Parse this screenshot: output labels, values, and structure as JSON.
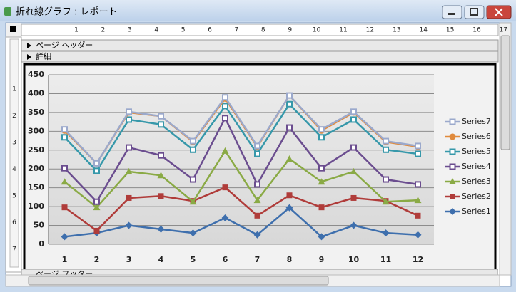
{
  "window": {
    "title": "折れ線グラフ : レポート",
    "sections": {
      "header": "ページ ヘッダー",
      "detail": "詳細",
      "footer": "ページ フッター"
    },
    "ruler_top": [
      "1",
      "2",
      "3",
      "4",
      "5",
      "6",
      "7",
      "8",
      "9",
      "10",
      "11",
      "12",
      "13",
      "14",
      "15",
      "16",
      "17"
    ],
    "ruler_left": [
      "1",
      "2",
      "3",
      "4",
      "5",
      "6",
      "7"
    ]
  },
  "chart_data": {
    "type": "line",
    "categories": [
      1,
      2,
      3,
      4,
      5,
      6,
      7,
      8,
      9,
      10,
      11,
      12
    ],
    "ylim": [
      0,
      450
    ],
    "yticks": [
      0,
      50,
      100,
      150,
      200,
      250,
      300,
      350,
      400,
      450
    ],
    "grid": true,
    "series": [
      {
        "name": "Series1",
        "color": "#3e6fad",
        "marker": "diamond",
        "values": [
          20,
          30,
          50,
          40,
          30,
          70,
          25,
          97,
          20,
          50,
          30,
          25
        ]
      },
      {
        "name": "Series2",
        "color": "#b03c3a",
        "marker": "square",
        "values": [
          98,
          36,
          123,
          128,
          115,
          151,
          76,
          130,
          98,
          123,
          115,
          76
        ]
      },
      {
        "name": "Series3",
        "color": "#8aaa45",
        "marker": "triangle",
        "values": [
          166,
          98,
          193,
          183,
          113,
          248,
          117,
          227,
          166,
          193,
          113,
          117
        ]
      },
      {
        "name": "Series4",
        "color": "#6b4d8f",
        "marker": "hollow-square",
        "values": [
          202,
          113,
          257,
          236,
          172,
          335,
          159,
          310,
          202,
          257,
          172,
          159
        ]
      },
      {
        "name": "Series5",
        "color": "#3698aa",
        "marker": "hollow-square",
        "values": [
          284,
          195,
          331,
          318,
          251,
          367,
          240,
          372,
          284,
          331,
          251,
          240
        ]
      },
      {
        "name": "Series6",
        "color": "#e08a3c",
        "marker": "circle",
        "values": [
          302,
          215,
          350,
          340,
          272,
          387,
          259,
          395,
          302,
          350,
          272,
          259
        ]
      },
      {
        "name": "Series7",
        "color": "#9ba9cc",
        "marker": "hollow-square",
        "values": [
          305,
          215,
          352,
          340,
          274,
          390,
          261,
          395,
          305,
          352,
          274,
          261
        ]
      }
    ]
  }
}
